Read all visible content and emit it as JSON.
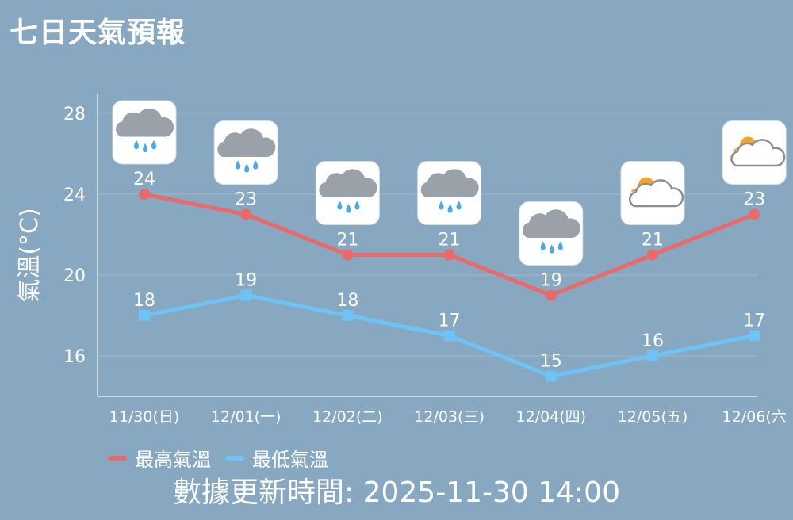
{
  "title": "七日天氣預報",
  "footer": "數據更新時間: 2025-11-30 14:00",
  "colors": {
    "background": "#87a8c0",
    "high": "#e86a6a",
    "low": "#6ec2f5",
    "grid": "#9bb3c4",
    "text": "#ffffff"
  },
  "chart_data": {
    "type": "line",
    "categories": [
      "11/30(日)",
      "12/01(一)",
      "12/02(二)",
      "12/03(三)",
      "12/04(四)",
      "12/05(五)",
      "12/06(六"
    ],
    "series": [
      {
        "name": "最高氣溫",
        "values": [
          24,
          23,
          21,
          21,
          19,
          21,
          23
        ],
        "color": "#e86a6a",
        "marker": "circle"
      },
      {
        "name": "最低氣溫",
        "values": [
          18,
          19,
          18,
          17,
          15,
          16,
          17
        ],
        "color": "#6ec2f5",
        "marker": "square"
      }
    ],
    "weather_icons": [
      "rain",
      "rain",
      "rain",
      "rain",
      "rain",
      "partly-cloudy",
      "partly-cloudy"
    ],
    "ylabel": "氣溫(°C)",
    "yticks": [
      16,
      20,
      24,
      28
    ],
    "ylim": [
      14,
      29
    ],
    "grid": true,
    "legend": "bottom-left"
  }
}
